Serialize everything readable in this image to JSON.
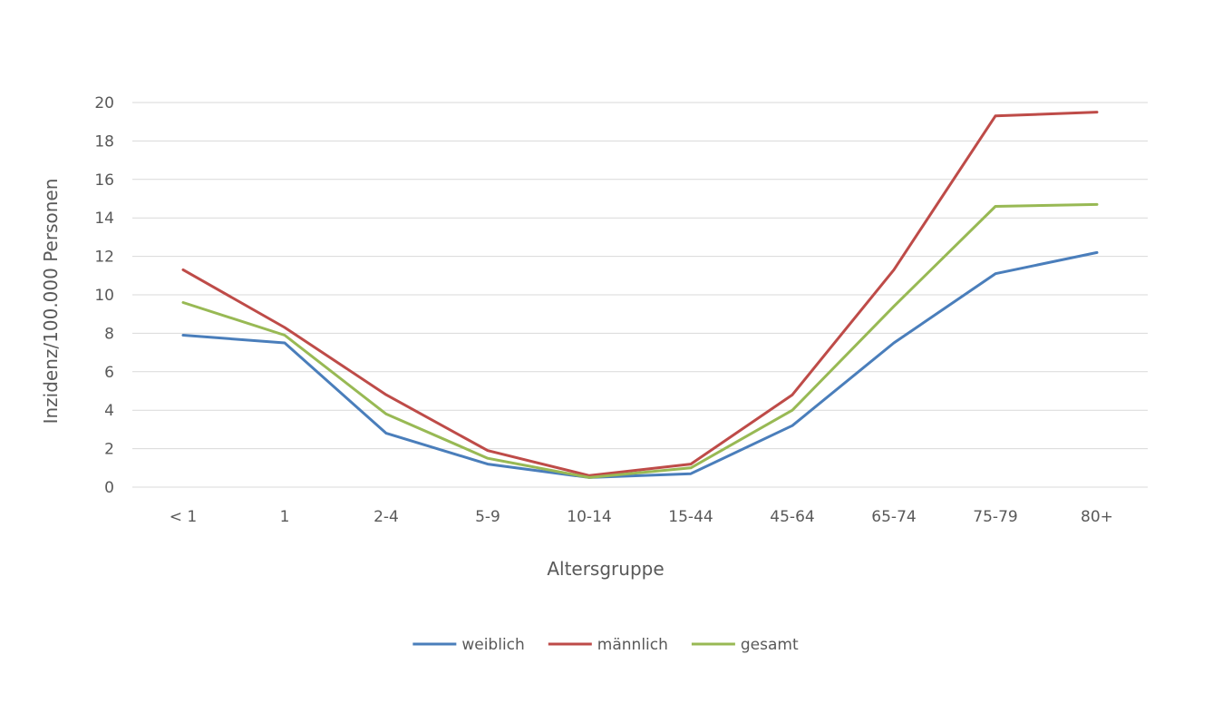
{
  "chart_data": {
    "type": "line",
    "title": "",
    "xlabel": "Altersgruppe",
    "ylabel": "Inzidenz/100.000 Personen",
    "ylim": [
      0,
      20
    ],
    "yticks": [
      0,
      2,
      4,
      6,
      8,
      10,
      12,
      14,
      16,
      18,
      20
    ],
    "categories": [
      "< 1",
      "1",
      "2-4",
      "5-9",
      "10-14",
      "15-44",
      "45-64",
      "65-74",
      "75-79",
      "80+"
    ],
    "grid": true,
    "legend_position": "bottom",
    "series": [
      {
        "name": "weiblich",
        "color": "#4a7ebb",
        "values": [
          7.9,
          7.5,
          2.8,
          1.2,
          0.5,
          0.7,
          3.2,
          7.5,
          11.1,
          12.2
        ]
      },
      {
        "name": "männlich",
        "color": "#be4b48",
        "values": [
          11.3,
          8.3,
          4.8,
          1.9,
          0.6,
          1.2,
          4.8,
          11.3,
          19.3,
          19.5
        ]
      },
      {
        "name": "gesamt",
        "color": "#98b954",
        "values": [
          9.6,
          7.9,
          3.8,
          1.5,
          0.5,
          1.0,
          4.0,
          9.4,
          14.6,
          14.7
        ]
      }
    ]
  }
}
